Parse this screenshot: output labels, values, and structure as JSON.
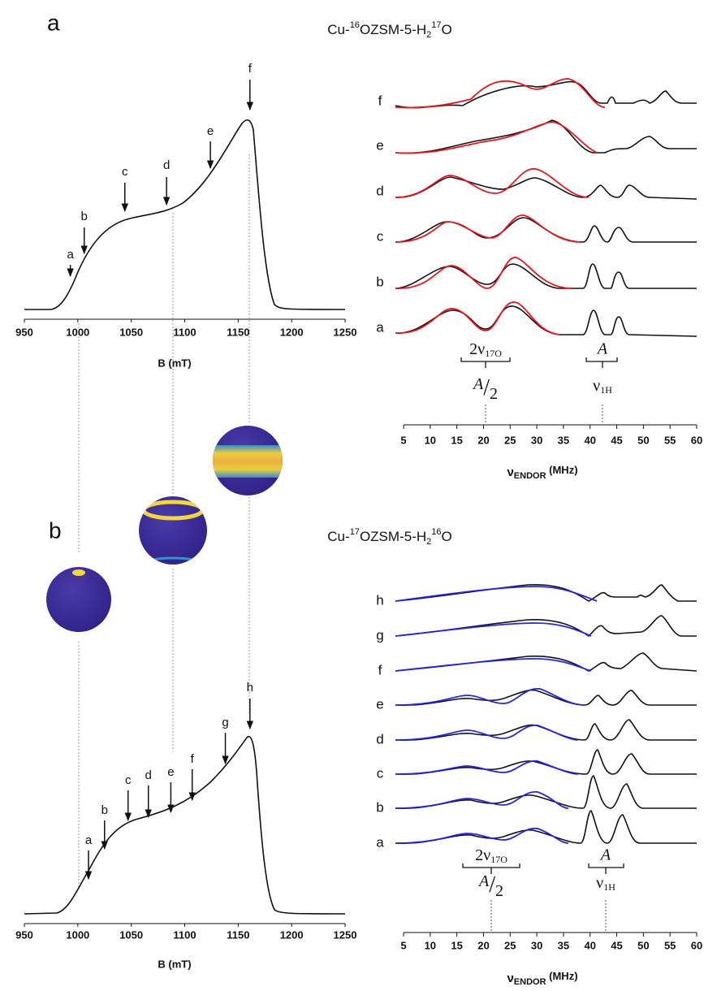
{
  "panels": [
    {
      "label": "a",
      "title_parts": [
        "Cu-",
        "16",
        "OZSM-5-H",
        "2",
        "17",
        "O"
      ],
      "epr": {
        "xlim": [
          950,
          1250
        ],
        "xticks": [
          950,
          1000,
          1050,
          1100,
          1150,
          1200,
          1250
        ],
        "xlabel": "B (mT)",
        "markers": [
          {
            "label": "a",
            "field": 993
          },
          {
            "label": "b",
            "field": 1006
          },
          {
            "label": "c",
            "field": 1044
          },
          {
            "label": "d",
            "field": 1083
          },
          {
            "label": "e",
            "field": 1124
          },
          {
            "label": "f",
            "field": 1161
          }
        ]
      },
      "endor": {
        "xlim": [
          5,
          60
        ],
        "xticks": [
          5,
          10,
          15,
          20,
          25,
          30,
          35,
          40,
          45,
          50,
          55,
          60
        ],
        "xlabel_parts": [
          "ν",
          "ENDOR",
          " (MHz)"
        ],
        "trace_labels": [
          "f",
          "e",
          "d",
          "c",
          "b",
          "a"
        ],
        "o17_parts": [
          "2ν",
          "17O"
        ],
        "half_parts": [
          "A",
          "/",
          "2"
        ],
        "a_label": "A",
        "h1_parts": [
          "ν",
          "1H"
        ]
      }
    },
    {
      "label": "b",
      "title_parts": [
        "Cu-",
        "17",
        "OZSM-5-H",
        "2",
        "16",
        "O"
      ],
      "epr": {
        "xlim": [
          950,
          1250
        ],
        "xticks": [
          950,
          1000,
          1050,
          1100,
          1150,
          1200,
          1250
        ],
        "xlabel": "B (mT)",
        "markers": [
          {
            "label": "a",
            "field": 1010
          },
          {
            "label": "b",
            "field": 1025
          },
          {
            "label": "c",
            "field": 1047
          },
          {
            "label": "d",
            "field": 1066
          },
          {
            "label": "e",
            "field": 1087
          },
          {
            "label": "f",
            "field": 1107
          },
          {
            "label": "g",
            "field": 1138
          },
          {
            "label": "h",
            "field": 1161
          }
        ]
      },
      "endor": {
        "xlim": [
          5,
          60
        ],
        "xticks": [
          5,
          10,
          15,
          20,
          25,
          30,
          35,
          40,
          45,
          50,
          55,
          60
        ],
        "xlabel_parts": [
          "ν",
          "ENDOR",
          " (MHz)"
        ],
        "trace_labels": [
          "h",
          "g",
          "f",
          "e",
          "d",
          "c",
          "b",
          "a"
        ],
        "o17_parts": [
          "2ν",
          "17O"
        ],
        "half_parts": [
          "A",
          "/",
          "2"
        ],
        "a_label": "A",
        "h1_parts": [
          "ν",
          "1H"
        ]
      }
    }
  ]
}
